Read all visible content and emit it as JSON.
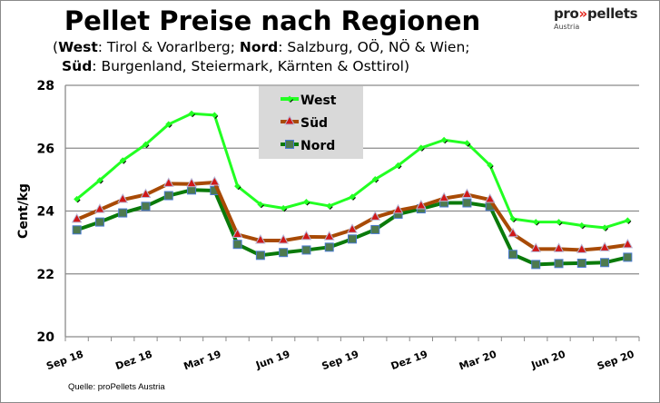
{
  "header": {
    "title": "Pellet Preise nach Regionen",
    "subtitle_lines": [
      [
        {
          "text": "(",
          "bold": false
        },
        {
          "text": "West",
          "bold": true
        },
        {
          "text": ": Tirol & Vorarlberg; ",
          "bold": false
        },
        {
          "text": "Nord",
          "bold": true
        },
        {
          "text": ": Salzburg, OÖ, NÖ & Wien;",
          "bold": false
        }
      ],
      [
        {
          "text": "Süd",
          "bold": true
        },
        {
          "text": ": Burgenland, Steiermark, Kärnten & Osttirol)",
          "bold": false
        }
      ]
    ]
  },
  "logo": {
    "text_pro": "pro",
    "text_arrows": "»",
    "text_pellets": "pellets",
    "text_country": "Austria"
  },
  "source": "Quelle: proPellets Austria",
  "chart_data": {
    "type": "line",
    "title": "Pellet Preise nach Regionen",
    "ylabel": "Cent/kg",
    "xlabel": "",
    "ylim": [
      20,
      28
    ],
    "yticks": [
      20,
      22,
      24,
      26,
      28
    ],
    "grid": true,
    "legend_placement": "top-center",
    "x": [
      "Sep 18",
      "Okt 18",
      "Nov 18",
      "Dez 18",
      "Jan 19",
      "Feb 19",
      "Mar 19",
      "Apr 19",
      "Mai 19",
      "Jun 19",
      "Jul 19",
      "Aug 19",
      "Sep 19",
      "Okt 19",
      "Nov 19",
      "Dez 19",
      "Jan 20",
      "Feb 20",
      "Mar 20",
      "Apr 20",
      "Mai 20",
      "Jun 20",
      "Jul 20",
      "Aug 20",
      "Sep 20"
    ],
    "xtick_labels": [
      "Sep 18",
      "Dez 18",
      "Mar 19",
      "Jun 19",
      "Sep 19",
      "Dez 19",
      "Mar 20",
      "Jun 20",
      "Sep 20"
    ],
    "series": [
      {
        "name": "West",
        "color": "#22ff22",
        "marker": "diamond",
        "values": [
          24.38,
          24.98,
          25.61,
          26.12,
          26.76,
          27.1,
          27.05,
          24.79,
          24.21,
          24.09,
          24.29,
          24.16,
          24.45,
          25.01,
          25.45,
          26.01,
          26.26,
          26.16,
          25.46,
          23.75,
          23.65,
          23.65,
          23.54,
          23.47,
          23.7
        ]
      },
      {
        "name": "Süd",
        "color": "#a84a05",
        "marker": "triangle",
        "marker_color": "#d01818",
        "values": [
          23.73,
          24.04,
          24.36,
          24.52,
          24.87,
          24.86,
          24.91,
          23.25,
          23.06,
          23.06,
          23.18,
          23.17,
          23.4,
          23.8,
          24.02,
          24.16,
          24.4,
          24.52,
          24.36,
          23.27,
          22.79,
          22.79,
          22.76,
          22.82,
          22.92
        ]
      },
      {
        "name": "Nord",
        "color": "#0a7a0a",
        "marker": "square",
        "marker_color": "#4e7a4e",
        "values": [
          23.4,
          23.65,
          23.94,
          24.15,
          24.49,
          24.67,
          24.65,
          22.94,
          22.59,
          22.68,
          22.76,
          22.85,
          23.11,
          23.41,
          23.9,
          24.07,
          24.26,
          24.26,
          24.15,
          22.62,
          22.3,
          22.33,
          22.34,
          22.36,
          22.53
        ]
      }
    ]
  }
}
